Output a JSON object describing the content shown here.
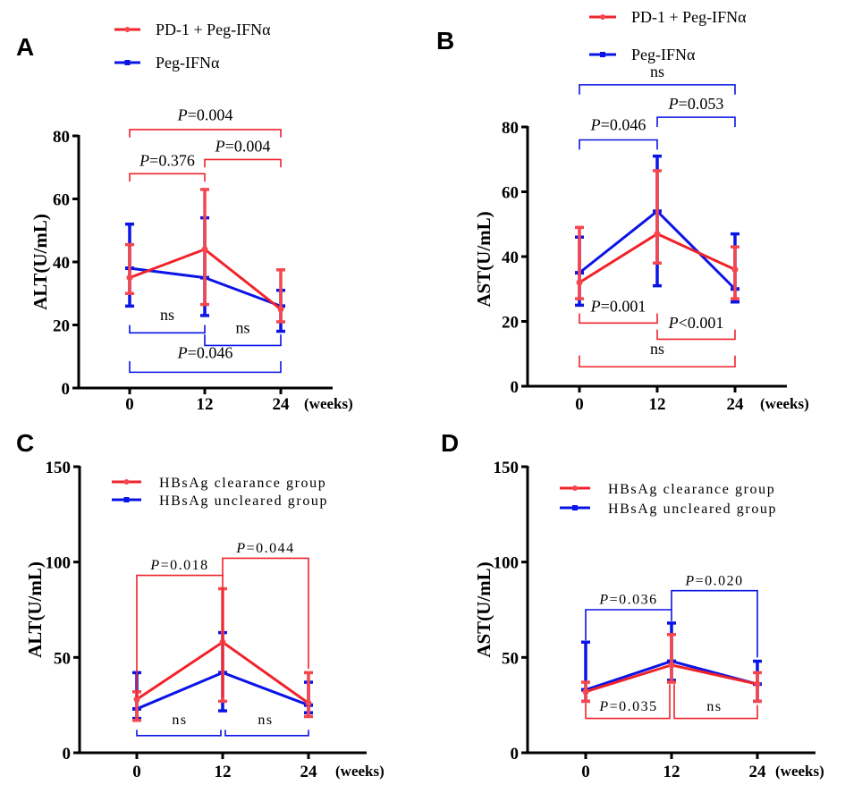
{
  "colors": {
    "red": "#f0232b",
    "red_err": "#f5474d",
    "blue": "#0a14e6",
    "axis": "#000000"
  },
  "chart_data": [
    {
      "panel": "A",
      "type": "line",
      "ylabel": "ALT(U/mL)",
      "xlabel": "",
      "x_unit_label": "(weeks)",
      "x": [
        0,
        12,
        24
      ],
      "x_tick_labels": [
        "0",
        "12",
        "24"
      ],
      "ylim": [
        0,
        80
      ],
      "y_ticks": [
        0,
        20,
        40,
        60,
        80
      ],
      "legend": {
        "placement": "top",
        "style": "stacked-above"
      },
      "series": [
        {
          "name": "PD-1 + Peg-IFNα",
          "color_key": "red",
          "marker": "circle",
          "values": [
            35,
            44,
            25
          ],
          "err_low": [
            30,
            26.5,
            21
          ],
          "err_high": [
            45.5,
            63,
            37.5
          ]
        },
        {
          "name": "Peg-IFNα",
          "color_key": "blue",
          "marker": "square",
          "values": [
            38,
            35,
            26
          ],
          "err_low": [
            26,
            23,
            18
          ],
          "err_high": [
            52,
            54,
            31
          ]
        }
      ],
      "annotations": [
        {
          "color_key": "red",
          "from": 0,
          "to": 24,
          "y": 82,
          "tick_down": 2.5,
          "prefix": "P",
          "label": "=0.004",
          "label_y": 85
        },
        {
          "color_key": "red",
          "from": 12,
          "to": 24,
          "y": 72.5,
          "tick_down": 2.5,
          "prefix": "P",
          "label": "=0.004",
          "label_y": 75
        },
        {
          "color_key": "red",
          "from": 0,
          "to": 12,
          "y": 68,
          "tick_down": 2.5,
          "prefix": "P",
          "label": "=0.376",
          "label_y": 70.5
        },
        {
          "color_key": "blue",
          "from": 0,
          "to": 12,
          "y": 17.5,
          "tick_up": 2.5,
          "prefix": "",
          "label": "ns",
          "label_y": 21.5
        },
        {
          "color_key": "blue",
          "from": 12,
          "to": 24,
          "y": 13.5,
          "tick_up": 3.5,
          "prefix": "",
          "label": "ns",
          "label_y": 17.5
        },
        {
          "color_key": "blue",
          "from": 0,
          "to": 24,
          "y": 5,
          "tick_up": 3.5,
          "prefix": "P",
          "label": "=0.046",
          "label_y": 9.5
        }
      ]
    },
    {
      "panel": "B",
      "type": "line",
      "ylabel": "AST(U/mL)",
      "xlabel": "",
      "x_unit_label": "(weeks)",
      "x": [
        0,
        12,
        24
      ],
      "x_tick_labels": [
        "0",
        "12",
        "24"
      ],
      "ylim": [
        0,
        80
      ],
      "y_ticks": [
        0,
        20,
        40,
        60,
        80
      ],
      "legend": {
        "placement": "top",
        "style": "stacked-above"
      },
      "series": [
        {
          "name": "PD-1 + Peg-IFNα",
          "color_key": "red",
          "marker": "circle",
          "values": [
            32,
            47,
            36
          ],
          "err_low": [
            27,
            38,
            27
          ],
          "err_high": [
            49,
            66.5,
            43
          ]
        },
        {
          "name": "Peg-IFNα",
          "color_key": "blue",
          "marker": "square",
          "values": [
            35,
            54,
            30
          ],
          "err_low": [
            25,
            31,
            26
          ],
          "err_high": [
            46,
            71,
            47
          ]
        }
      ],
      "annotations": [
        {
          "color_key": "blue",
          "from": 0,
          "to": 24,
          "y": 93,
          "tick_down": 3,
          "prefix": "",
          "label": "ns",
          "label_y": 95.5
        },
        {
          "color_key": "blue",
          "from": 12,
          "to": 24,
          "y": 83,
          "tick_down": 3,
          "prefix": "P",
          "label": "=0.053",
          "label_y": 85.5
        },
        {
          "color_key": "blue",
          "from": 0,
          "to": 12,
          "y": 76,
          "tick_down": 3,
          "prefix": "P",
          "label": "=0.046",
          "label_y": 79
        },
        {
          "color_key": "red",
          "from": 0,
          "to": 12,
          "y": 19.5,
          "tick_up": 3,
          "prefix": "P",
          "label": "=0.001",
          "label_y": 23
        },
        {
          "color_key": "red",
          "from": 12,
          "to": 24,
          "y": 14.5,
          "tick_up": 3,
          "prefix": "P",
          "label": "<0.001",
          "label_y": 18
        },
        {
          "color_key": "red",
          "from": 0,
          "to": 24,
          "y": 6,
          "tick_up": 3.5,
          "prefix": "",
          "label": "ns",
          "label_y": 10
        }
      ]
    },
    {
      "panel": "C",
      "type": "line",
      "ylabel": "ALT(U/mL)",
      "xlabel": "",
      "x_unit_label": "(weeks)",
      "x": [
        0,
        12,
        24
      ],
      "x_tick_labels": [
        "0",
        "12",
        "24"
      ],
      "ylim": [
        0,
        150
      ],
      "y_ticks": [
        0,
        50,
        100,
        150
      ],
      "legend": {
        "placement": "top-left",
        "style": "inside"
      },
      "series": [
        {
          "name": "HBsAg clearance group",
          "color_key": "red",
          "marker": "circle",
          "values": [
            28,
            58,
            26
          ],
          "err_low": [
            17,
            27,
            19
          ],
          "err_high": [
            32,
            86,
            42
          ]
        },
        {
          "name": "HBsAg uncleared group",
          "color_key": "blue",
          "marker": "square",
          "values": [
            23,
            42,
            25
          ],
          "err_low": [
            18,
            22,
            21
          ],
          "err_high": [
            42,
            63,
            37
          ]
        }
      ],
      "annotations": [
        {
          "color_key": "red",
          "from": 0,
          "to": 12,
          "y": 93,
          "tick_down_to": 29,
          "prefix": "P",
          "label": "=0.018",
          "label_y": 96
        },
        {
          "color_key": "red",
          "from": 12,
          "to": 24,
          "y": 102,
          "tick_down_to_left": 93,
          "tick_down_to": 44,
          "prefix": "P",
          "label": "=0.044",
          "label_y": 105
        },
        {
          "color_key": "blue",
          "from": 0,
          "to": 12,
          "y": 9,
          "tick_up": 3,
          "prefix": "",
          "label": "ns",
          "label_y": 15
        },
        {
          "color_key": "blue",
          "from": 12,
          "to": 24,
          "y": 9,
          "tick_up": 3,
          "prefix": "",
          "label": "ns",
          "label_y": 15
        }
      ]
    },
    {
      "panel": "D",
      "type": "line",
      "ylabel": "AST(U/mL)",
      "xlabel": "",
      "x_unit_label": "(weeks)",
      "x": [
        0,
        12,
        24
      ],
      "x_tick_labels": [
        "0",
        "12",
        "24"
      ],
      "ylim": [
        0,
        150
      ],
      "y_ticks": [
        0,
        50,
        100,
        150
      ],
      "legend": {
        "placement": "top-right",
        "style": "inside"
      },
      "series": [
        {
          "name": "HBsAg clearance group",
          "color_key": "red",
          "marker": "circle",
          "values": [
            32,
            46,
            36
          ],
          "err_low": [
            27,
            37,
            27
          ],
          "err_high": [
            37,
            62,
            42
          ]
        },
        {
          "name": "HBsAg uncleared group",
          "color_key": "blue",
          "marker": "square",
          "values": [
            33,
            48,
            36
          ],
          "err_low": [
            27,
            38,
            27
          ],
          "err_high": [
            58,
            68,
            48
          ]
        }
      ],
      "annotations": [
        {
          "color_key": "blue",
          "from": 0,
          "to": 12,
          "y": 75,
          "tick_down_to": 59,
          "tick_down_to_right": 69,
          "prefix": "P",
          "label": "=0.036",
          "label_y": 78
        },
        {
          "color_key": "blue",
          "from": 12,
          "to": 24,
          "y": 85,
          "tick_down_to_left": 75,
          "tick_down_to": 50,
          "prefix": "P",
          "label": "=0.020",
          "label_y": 88
        },
        {
          "color_key": "red",
          "from": 0,
          "to": 12,
          "y": 18,
          "tick_up_to": 26,
          "tick_up_to_right": 36,
          "prefix": "P",
          "label": "=0.035",
          "label_y": 22
        },
        {
          "color_key": "red",
          "from": 12,
          "to": 24,
          "y": 18,
          "tick_up_to_left": 36,
          "tick_up_to": 25,
          "prefix": "",
          "label": "ns",
          "label_y": 22
        }
      ]
    }
  ]
}
